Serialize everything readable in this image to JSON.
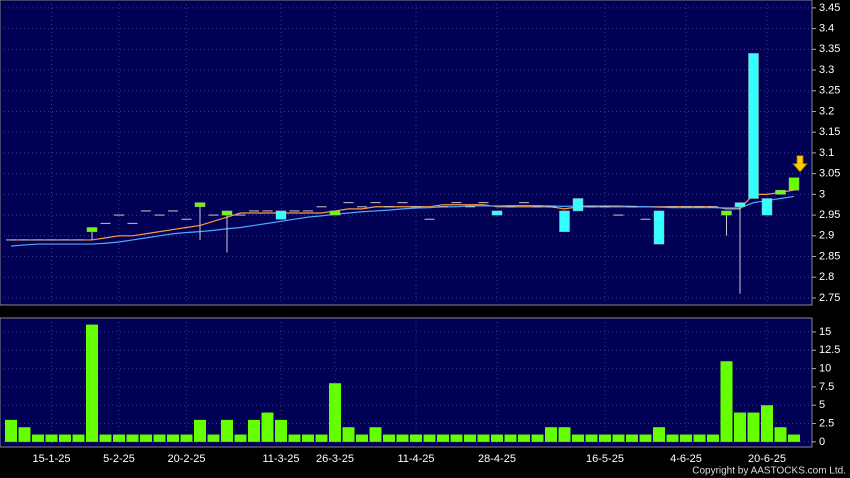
{
  "chart_data": [
    {
      "type": "candlestick",
      "categories": [
        null,
        null,
        null,
        "15-1-25",
        null,
        null,
        null,
        null,
        "5-2-25",
        null,
        null,
        null,
        null,
        "20-2-25",
        null,
        null,
        null,
        null,
        null,
        null,
        "11-3-25",
        null,
        null,
        null,
        "26-3-25",
        null,
        null,
        null,
        null,
        null,
        "11-4-25",
        null,
        null,
        null,
        null,
        null,
        "28-4-25",
        null,
        null,
        null,
        null,
        null,
        null,
        null,
        "16-5-25",
        null,
        null,
        null,
        null,
        null,
        "4-6-25",
        null,
        null,
        null,
        null,
        null,
        "20-6-25",
        null,
        null
      ],
      "open": [
        2.89,
        2.89,
        2.89,
        2.89,
        2.89,
        2.89,
        2.91,
        2.93,
        2.95,
        2.93,
        2.96,
        2.95,
        2.96,
        2.94,
        2.97,
        2.95,
        2.95,
        2.95,
        2.96,
        2.96,
        2.96,
        2.96,
        2.96,
        2.97,
        2.95,
        2.98,
        2.97,
        2.98,
        2.97,
        2.98,
        2.97,
        2.94,
        2.97,
        2.98,
        2.97,
        2.98,
        2.96,
        2.97,
        2.98,
        2.97,
        2.97,
        2.96,
        2.99,
        2.97,
        2.97,
        2.95,
        2.97,
        2.94,
        2.96,
        2.97,
        2.97,
        2.97,
        2.97,
        2.95,
        2.98,
        3.34,
        2.99,
        3.0,
        3.01
      ],
      "high": [
        2.89,
        2.89,
        2.89,
        2.89,
        2.89,
        2.89,
        2.92,
        2.93,
        2.95,
        2.93,
        2.96,
        2.95,
        2.96,
        2.94,
        2.98,
        2.95,
        2.96,
        2.95,
        2.96,
        2.96,
        2.96,
        2.96,
        2.96,
        2.97,
        2.96,
        2.98,
        2.97,
        2.98,
        2.97,
        2.98,
        2.97,
        2.94,
        2.97,
        2.98,
        2.97,
        2.98,
        2.96,
        2.97,
        2.98,
        2.97,
        2.97,
        2.96,
        2.99,
        2.97,
        2.97,
        2.95,
        2.97,
        2.94,
        2.96,
        2.97,
        2.97,
        2.97,
        2.97,
        2.96,
        2.98,
        3.34,
        2.99,
        3.01,
        3.04
      ],
      "low": [
        2.89,
        2.89,
        2.89,
        2.89,
        2.89,
        2.89,
        2.89,
        2.93,
        2.95,
        2.93,
        2.96,
        2.95,
        2.96,
        2.94,
        2.89,
        2.95,
        2.86,
        2.95,
        2.96,
        2.96,
        2.94,
        2.96,
        2.96,
        2.97,
        2.95,
        2.98,
        2.97,
        2.98,
        2.97,
        2.98,
        2.97,
        2.94,
        2.97,
        2.98,
        2.97,
        2.98,
        2.95,
        2.97,
        2.98,
        2.97,
        2.97,
        2.91,
        2.96,
        2.97,
        2.97,
        2.95,
        2.97,
        2.94,
        2.88,
        2.97,
        2.97,
        2.97,
        2.97,
        2.9,
        2.76,
        2.99,
        2.95,
        3.0,
        3.01
      ],
      "close": [
        2.89,
        2.89,
        2.89,
        2.89,
        2.89,
        2.89,
        2.92,
        2.93,
        2.95,
        2.93,
        2.96,
        2.95,
        2.96,
        2.94,
        2.98,
        2.95,
        2.96,
        2.95,
        2.96,
        2.96,
        2.94,
        2.96,
        2.96,
        2.97,
        2.96,
        2.98,
        2.97,
        2.98,
        2.97,
        2.98,
        2.97,
        2.94,
        2.97,
        2.98,
        2.97,
        2.98,
        2.95,
        2.97,
        2.98,
        2.97,
        2.97,
        2.91,
        2.96,
        2.97,
        2.97,
        2.95,
        2.97,
        2.94,
        2.88,
        2.97,
        2.97,
        2.97,
        2.97,
        2.96,
        2.97,
        2.99,
        2.95,
        3.01,
        3.04
      ],
      "up_color": "#66ff00",
      "down_color": "#33ffff",
      "flat_color": "#c8c8c8",
      "moving_averages": [
        {
          "color": "#ff9940",
          "values": [
            2.89,
            2.89,
            2.89,
            2.89,
            2.89,
            2.89,
            2.89,
            2.895,
            2.9,
            2.9,
            2.905,
            2.91,
            2.915,
            2.92,
            2.925,
            2.935,
            2.945,
            2.955,
            2.955,
            2.955,
            2.955,
            2.955,
            2.955,
            2.955,
            2.96,
            2.965,
            2.965,
            2.97,
            2.97,
            2.97,
            2.97,
            2.97,
            2.975,
            2.975,
            2.975,
            2.975,
            2.97,
            2.97,
            2.97,
            2.97,
            2.97,
            2.965,
            2.97,
            2.97,
            2.97,
            2.97,
            2.97,
            2.97,
            2.97,
            2.97,
            2.97,
            2.97,
            2.97,
            2.965,
            2.965,
            3.0,
            3.0,
            3.005,
            3.01
          ]
        },
        {
          "color": "#4fa8ff",
          "values": [
            2.875,
            2.878,
            2.88,
            2.88,
            2.88,
            2.88,
            2.88,
            2.882,
            2.885,
            2.89,
            2.895,
            2.9,
            2.905,
            2.908,
            2.91,
            2.913,
            2.917,
            2.92,
            2.925,
            2.93,
            2.935,
            2.94,
            2.945,
            2.948,
            2.952,
            2.955,
            2.958,
            2.96,
            2.962,
            2.965,
            2.967,
            2.968,
            2.97,
            2.97,
            2.972,
            2.972,
            2.972,
            2.973,
            2.973,
            2.973,
            2.972,
            2.971,
            2.972,
            2.972,
            2.972,
            2.972,
            2.971,
            2.97,
            2.969,
            2.968,
            2.968,
            2.968,
            2.968,
            2.967,
            2.967,
            2.98,
            2.985,
            2.99,
            2.995
          ]
        }
      ],
      "ylim": [
        2.733,
        3.469
      ],
      "yticks": [
        2.75,
        2.8,
        2.85,
        2.9,
        2.95,
        3,
        3.05,
        3.1,
        3.15,
        3.2,
        3.25,
        3.3,
        3.35,
        3.4,
        3.45
      ],
      "grid": true
    },
    {
      "type": "bar",
      "values": [
        3,
        2,
        1,
        1,
        1,
        1,
        16,
        1,
        1,
        1,
        1,
        1,
        1,
        1,
        3,
        1,
        3,
        1,
        3,
        4,
        3,
        1,
        1,
        1,
        8,
        2,
        1,
        2,
        1,
        1,
        1,
        1,
        1,
        1,
        1,
        1,
        1,
        1,
        1,
        1,
        2,
        2,
        1,
        1,
        1,
        1,
        1,
        1,
        2,
        1,
        1,
        1,
        1,
        11,
        4,
        4,
        5,
        2,
        1
      ],
      "color": "#66ff00",
      "ylim": [
        -0.7,
        16.9
      ],
      "yticks": [
        0,
        2.5,
        5,
        7.5,
        10,
        12.5,
        15
      ],
      "grid": true
    }
  ],
  "footer": {
    "copyright": "Copyright by AASTOCKS.com Ltd."
  }
}
